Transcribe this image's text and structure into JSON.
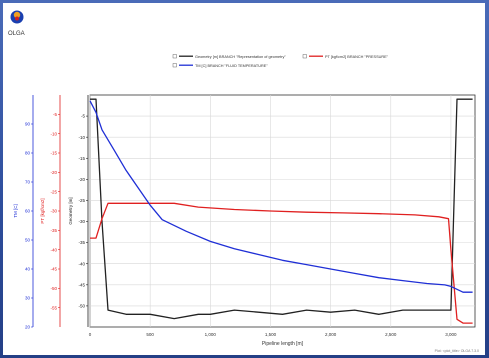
{
  "app": {
    "logo_text": "OLGA"
  },
  "chart_data": {
    "type": "line",
    "xlabel": "Pipeline length [m]",
    "xlim": [
      0,
      3200
    ],
    "x_ticks": [
      0,
      500,
      1000,
      1500,
      2000,
      2500,
      3000
    ],
    "x_tick_labels": [
      "0",
      "500",
      "1,000",
      "1,500",
      "2,000",
      "2,500",
      "3,000"
    ],
    "grid": true,
    "legend_placement": "top",
    "axes": [
      {
        "id": "temp",
        "label": "TM [C]",
        "color": "#1f2fd6",
        "ylim": [
          20,
          100
        ],
        "ticks": [
          20,
          30,
          40,
          50,
          60,
          70,
          80,
          90
        ],
        "tick_labels": [
          "20",
          "30",
          "40",
          "50",
          "60",
          "70",
          "80",
          "90"
        ]
      },
      {
        "id": "press",
        "label": "PT [kgf/cm2]",
        "color": "#e02020",
        "ylim": [
          -60,
          0
        ],
        "ticks": [
          -55,
          -50,
          -45,
          -40,
          -35,
          -30,
          -25,
          -20,
          -15,
          -10,
          -5
        ],
        "tick_labels": [
          "-55",
          "-50",
          "-45",
          "-40",
          "-35",
          "-30",
          "-25",
          "-20",
          "-15",
          "-10",
          "-5"
        ]
      },
      {
        "id": "geom",
        "label": "Geometry [m]",
        "color": "#222222",
        "ylim": [
          -55,
          0
        ],
        "ticks": [
          -50,
          -45,
          -40,
          -35,
          -30,
          -25,
          -20,
          -15,
          -10,
          -5
        ],
        "tick_labels": [
          "-50",
          "-45",
          "-40",
          "-35",
          "-30",
          "-25",
          "-20",
          "-15",
          "-10",
          "-5"
        ]
      }
    ],
    "series": [
      {
        "name": "Geometry [m] BRANCH \"Representation of geometry\"",
        "axis": "geom",
        "color": "#222222",
        "x": [
          0,
          50,
          100,
          150,
          300,
          500,
          700,
          900,
          1000,
          1200,
          1400,
          1600,
          1800,
          2000,
          2200,
          2400,
          2600,
          2800,
          2950,
          3000,
          3050,
          3180
        ],
        "y": [
          -1,
          -1,
          -30,
          -51,
          -52,
          -52,
          -53,
          -52,
          -52,
          -51,
          -51.5,
          -52,
          -51,
          -51.5,
          -51,
          -52,
          -51,
          -51,
          -51,
          -51,
          -1,
          -1
        ]
      },
      {
        "name": "PT [kgf/cm2] BRANCH \"PRESSURE\"",
        "axis": "press",
        "color": "#e02020",
        "x": [
          0,
          50,
          100,
          150,
          300,
          500,
          700,
          900,
          1200,
          1500,
          1800,
          2100,
          2400,
          2700,
          2900,
          2980,
          3000,
          3050,
          3100,
          3180
        ],
        "y": [
          -37,
          -37,
          -32,
          -28,
          -28,
          -28,
          -28,
          -29,
          -29.6,
          -30,
          -30.3,
          -30.5,
          -30.7,
          -31,
          -31.5,
          -32,
          -40,
          -58,
          -59,
          -59
        ]
      },
      {
        "name": "TM [C] BRANCH \"FLUID TEMPERATURE\"",
        "axis": "temp",
        "color": "#1f2fd6",
        "x": [
          0,
          50,
          100,
          200,
          300,
          400,
          500,
          600,
          800,
          1000,
          1200,
          1400,
          1600,
          1800,
          2000,
          2200,
          2400,
          2600,
          2800,
          2950,
          3000,
          3050,
          3100,
          3180
        ],
        "y": [
          98,
          94,
          88,
          81,
          74,
          68,
          62,
          57,
          53,
          49.5,
          47,
          45,
          43,
          41.5,
          40,
          38.5,
          37,
          36,
          35,
          34.5,
          34,
          33,
          32,
          32
        ]
      }
    ],
    "footer_note": "Plot: <plot_title>  OLGA 7.3.0"
  }
}
